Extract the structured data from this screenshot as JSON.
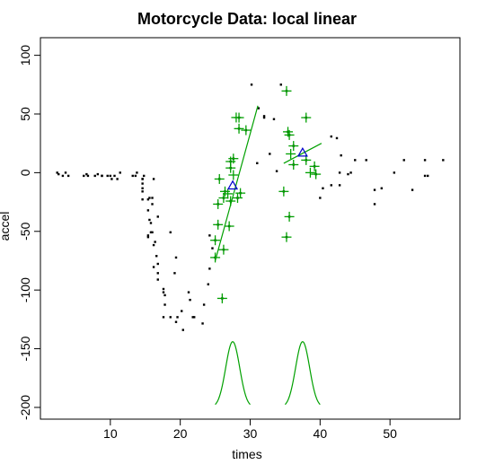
{
  "chart_data": {
    "type": "scatter",
    "title": "Motorcycle Data: local linear",
    "xlabel": "times",
    "ylabel": "accel",
    "xlim": [
      0,
      60
    ],
    "ylim": [
      -210,
      115
    ],
    "x_ticks": [
      10,
      20,
      30,
      40,
      50
    ],
    "y_ticks": [
      -200,
      -150,
      -100,
      -50,
      0,
      50,
      100
    ],
    "x_tick_labels": [
      "10",
      "20",
      "30",
      "40",
      "50"
    ],
    "y_tick_labels": [
      "-200",
      "-150",
      "-100",
      "-50",
      "0",
      "50",
      "100"
    ],
    "colors": {
      "points": "#000000",
      "highlight": "#00a000",
      "center": "#0000cc",
      "frame": "#000000"
    },
    "series": [
      {
        "role": "all-observations",
        "marker": "dot",
        "points": [
          [
            2.4,
            0.0
          ],
          [
            2.6,
            -1.3
          ],
          [
            3.2,
            -2.7
          ],
          [
            3.6,
            0.0
          ],
          [
            4.0,
            -2.7
          ],
          [
            6.2,
            -2.7
          ],
          [
            6.6,
            -1.3
          ],
          [
            6.8,
            -2.7
          ],
          [
            7.8,
            -2.7
          ],
          [
            8.2,
            -1.3
          ],
          [
            8.8,
            -2.7
          ],
          [
            8.8,
            -2.7
          ],
          [
            9.6,
            -2.7
          ],
          [
            10.0,
            -2.7
          ],
          [
            10.2,
            -5.4
          ],
          [
            10.6,
            -2.7
          ],
          [
            11.0,
            -5.4
          ],
          [
            11.4,
            0.0
          ],
          [
            13.2,
            -2.7
          ],
          [
            13.6,
            -2.7
          ],
          [
            13.8,
            0.0
          ],
          [
            14.6,
            -13.3
          ],
          [
            14.6,
            -5.4
          ],
          [
            14.6,
            -5.4
          ],
          [
            14.6,
            -9.3
          ],
          [
            14.6,
            -16.0
          ],
          [
            14.6,
            -22.8
          ],
          [
            14.8,
            -2.7
          ],
          [
            15.4,
            -22.8
          ],
          [
            15.4,
            -32.1
          ],
          [
            15.4,
            -53.5
          ],
          [
            15.4,
            -54.9
          ],
          [
            15.6,
            -40.2
          ],
          [
            15.6,
            -21.5
          ],
          [
            15.8,
            -50.8
          ],
          [
            15.8,
            -42.9
          ],
          [
            16.0,
            -26.8
          ],
          [
            16.0,
            -21.5
          ],
          [
            16.0,
            -50.8
          ],
          [
            16.2,
            -61.7
          ],
          [
            16.2,
            -5.4
          ],
          [
            16.2,
            -80.4
          ],
          [
            16.4,
            -59.0
          ],
          [
            16.6,
            -71.0
          ],
          [
            16.8,
            -91.1
          ],
          [
            16.8,
            -77.7
          ],
          [
            16.8,
            -37.5
          ],
          [
            16.8,
            -85.6
          ],
          [
            17.6,
            -123.1
          ],
          [
            17.6,
            -101.9
          ],
          [
            17.6,
            -99.1
          ],
          [
            17.8,
            -104.4
          ],
          [
            17.8,
            -112.5
          ],
          [
            18.6,
            -50.8
          ],
          [
            18.6,
            -123.1
          ],
          [
            19.2,
            -85.6
          ],
          [
            19.4,
            -72.3
          ],
          [
            19.4,
            -127.2
          ],
          [
            19.6,
            -123.1
          ],
          [
            20.2,
            -117.9
          ],
          [
            20.4,
            -134.0
          ],
          [
            21.2,
            -101.9
          ],
          [
            21.4,
            -108.4
          ],
          [
            21.8,
            -123.1
          ],
          [
            22.0,
            -123.1
          ],
          [
            23.2,
            -128.5
          ],
          [
            23.4,
            -112.5
          ],
          [
            24.0,
            -95.1
          ],
          [
            24.2,
            -81.8
          ],
          [
            24.2,
            -53.5
          ],
          [
            24.6,
            -64.4
          ],
          [
            25.0,
            -57.6
          ],
          [
            25.0,
            -72.3
          ],
          [
            25.4,
            -44.3
          ],
          [
            25.4,
            -26.8
          ],
          [
            25.6,
            -5.4
          ],
          [
            26.0,
            -107.1
          ],
          [
            26.2,
            -21.5
          ],
          [
            26.2,
            -65.6
          ],
          [
            26.4,
            -16.0
          ],
          [
            27.0,
            -45.6
          ],
          [
            27.2,
            -24.2
          ],
          [
            27.2,
            9.5
          ],
          [
            27.2,
            4.0
          ],
          [
            27.6,
            12.0
          ],
          [
            28.2,
            -21.5
          ],
          [
            28.4,
            37.5
          ],
          [
            28.4,
            46.9
          ],
          [
            28.6,
            -17.4
          ],
          [
            29.4,
            36.2
          ],
          [
            30.2,
            75.0
          ],
          [
            31.0,
            8.1
          ],
          [
            31.2,
            54.9
          ],
          [
            32.0,
            48.2
          ],
          [
            32.0,
            46.9
          ],
          [
            32.8,
            16.0
          ],
          [
            33.4,
            45.6
          ],
          [
            33.8,
            1.3
          ],
          [
            34.4,
            75.0
          ],
          [
            34.8,
            -16.0
          ],
          [
            35.2,
            -54.9
          ],
          [
            35.2,
            69.6
          ],
          [
            35.4,
            34.8
          ],
          [
            35.6,
            32.1
          ],
          [
            35.6,
            -37.5
          ],
          [
            36.2,
            22.8
          ],
          [
            36.2,
            6.8
          ],
          [
            38.0,
            10.7
          ],
          [
            38.0,
            46.9
          ],
          [
            39.2,
            5.4
          ],
          [
            39.4,
            -1.3
          ],
          [
            40.0,
            -21.5
          ],
          [
            40.4,
            -13.3
          ],
          [
            41.6,
            30.8
          ],
          [
            41.6,
            -10.7
          ],
          [
            42.4,
            29.4
          ],
          [
            42.8,
            0.0
          ],
          [
            42.8,
            -10.7
          ],
          [
            43.0,
            14.7
          ],
          [
            44.0,
            -1.3
          ],
          [
            44.4,
            0.0
          ],
          [
            45.0,
            10.7
          ],
          [
            46.6,
            10.7
          ],
          [
            47.8,
            -26.8
          ],
          [
            47.8,
            -14.7
          ],
          [
            48.8,
            -13.3
          ],
          [
            50.6,
            0.0
          ],
          [
            52.0,
            10.7
          ],
          [
            53.2,
            -14.7
          ],
          [
            55.0,
            -2.7
          ],
          [
            55.0,
            10.7
          ],
          [
            55.4,
            -2.7
          ],
          [
            57.6,
            10.7
          ]
        ]
      },
      {
        "role": "window-1",
        "marker": "plus",
        "center": [
          27.5,
          -11
        ],
        "line": [
          [
            25.0,
            -75
          ],
          [
            31.1,
            57
          ]
        ],
        "kernel": {
          "mu": 27.5,
          "sigma": 1.0,
          "base": -200,
          "peak": -144
        },
        "points": [
          [
            25.0,
            -72.3
          ],
          [
            25.4,
            -44.3
          ],
          [
            25.4,
            -26.8
          ],
          [
            25.6,
            -5.4
          ],
          [
            26.0,
            -107.1
          ],
          [
            26.2,
            -21.5
          ],
          [
            26.2,
            -65.6
          ],
          [
            26.4,
            -16.0
          ],
          [
            27.0,
            -45.6
          ],
          [
            27.2,
            -24.2
          ],
          [
            27.2,
            9.5
          ],
          [
            27.2,
            4.0
          ],
          [
            27.6,
            12.0
          ],
          [
            28.2,
            -21.5
          ],
          [
            28.4,
            37.5
          ],
          [
            28.4,
            46.9
          ],
          [
            28.6,
            -17.4
          ],
          [
            29.4,
            36.2
          ],
          [
            25.0,
            -57.6
          ],
          [
            26.8,
            -18.0
          ],
          [
            27.6,
            -2.0
          ],
          [
            28.0,
            47.0
          ]
        ]
      },
      {
        "role": "window-2",
        "marker": "plus",
        "center": [
          37.5,
          17
        ],
        "line": [
          [
            34.8,
            8
          ],
          [
            40.2,
            25
          ]
        ],
        "kernel": {
          "mu": 37.5,
          "sigma": 1.0,
          "base": -200,
          "peak": -144
        },
        "points": [
          [
            35.2,
            -54.9
          ],
          [
            35.2,
            69.6
          ],
          [
            35.4,
            34.8
          ],
          [
            35.6,
            32.1
          ],
          [
            35.6,
            -37.5
          ],
          [
            36.2,
            22.8
          ],
          [
            36.2,
            6.8
          ],
          [
            38.0,
            10.7
          ],
          [
            38.0,
            46.9
          ],
          [
            39.2,
            5.4
          ],
          [
            39.4,
            -1.3
          ],
          [
            34.8,
            -16.0
          ],
          [
            35.8,
            16.0
          ],
          [
            38.6,
            0.0
          ]
        ]
      }
    ]
  }
}
